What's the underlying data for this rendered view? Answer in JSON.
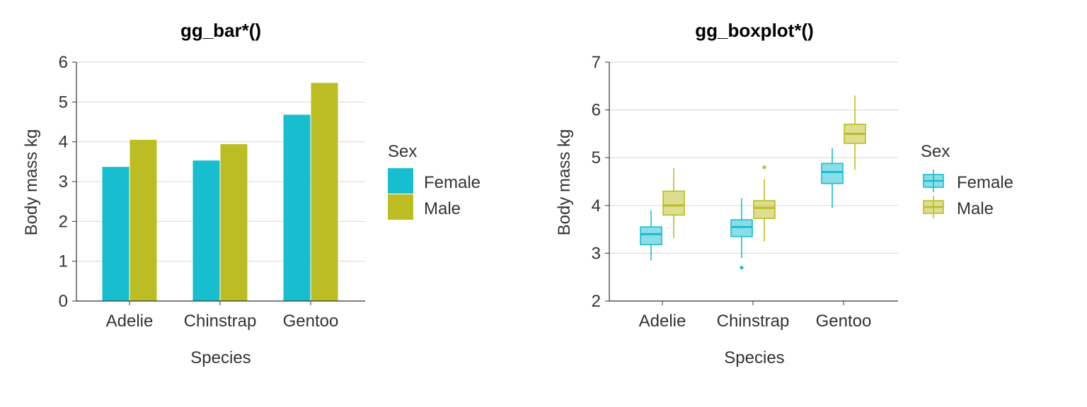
{
  "chart_data": [
    {
      "type": "bar",
      "title": "gg_bar*()",
      "xlabel": "Species",
      "ylabel": "Body mass kg",
      "categories": [
        "Adelie",
        "Chinstrap",
        "Gentoo"
      ],
      "ylim": [
        0,
        6
      ],
      "yticks": [
        "0",
        "1",
        "2",
        "3",
        "4",
        "5",
        "6"
      ],
      "grid": "horizontal",
      "legend": {
        "title": "Sex",
        "placement": "right"
      },
      "series": [
        {
          "name": "Female",
          "color": "#17BECF",
          "values": [
            3.37,
            3.53,
            4.68
          ]
        },
        {
          "name": "Male",
          "color": "#BCBD22",
          "values": [
            4.05,
            3.94,
            5.48
          ]
        }
      ]
    },
    {
      "type": "boxplot",
      "title": "gg_boxplot*()",
      "xlabel": "Species",
      "ylabel": "Body mass kg",
      "categories": [
        "Adelie",
        "Chinstrap",
        "Gentoo"
      ],
      "ylim": [
        2,
        7
      ],
      "yticks": [
        "2",
        "3",
        "4",
        "5",
        "6",
        "7"
      ],
      "grid": "horizontal",
      "legend": {
        "title": "Sex",
        "placement": "right"
      },
      "series": [
        {
          "name": "Female",
          "color": "#17BECF",
          "boxes": [
            {
              "whisker_low": 2.85,
              "q1": 3.18,
              "median": 3.4,
              "q3": 3.55,
              "whisker_high": 3.9,
              "outliers": []
            },
            {
              "whisker_low": 2.9,
              "q1": 3.35,
              "median": 3.55,
              "q3": 3.7,
              "whisker_high": 4.15,
              "outliers": [
                2.7
              ]
            },
            {
              "whisker_low": 3.95,
              "q1": 4.46,
              "median": 4.7,
              "q3": 4.88,
              "whisker_high": 5.2,
              "outliers": []
            }
          ]
        },
        {
          "name": "Male",
          "color": "#BCBD22",
          "boxes": [
            {
              "whisker_low": 3.32,
              "q1": 3.8,
              "median": 4.0,
              "q3": 4.3,
              "whisker_high": 4.78,
              "outliers": []
            },
            {
              "whisker_low": 3.25,
              "q1": 3.73,
              "median": 3.95,
              "q3": 4.1,
              "whisker_high": 4.55,
              "outliers": [
                4.8
              ]
            },
            {
              "whisker_low": 4.75,
              "q1": 5.3,
              "median": 5.5,
              "q3": 5.7,
              "whisker_high": 6.3,
              "outliers": []
            }
          ]
        }
      ]
    }
  ]
}
